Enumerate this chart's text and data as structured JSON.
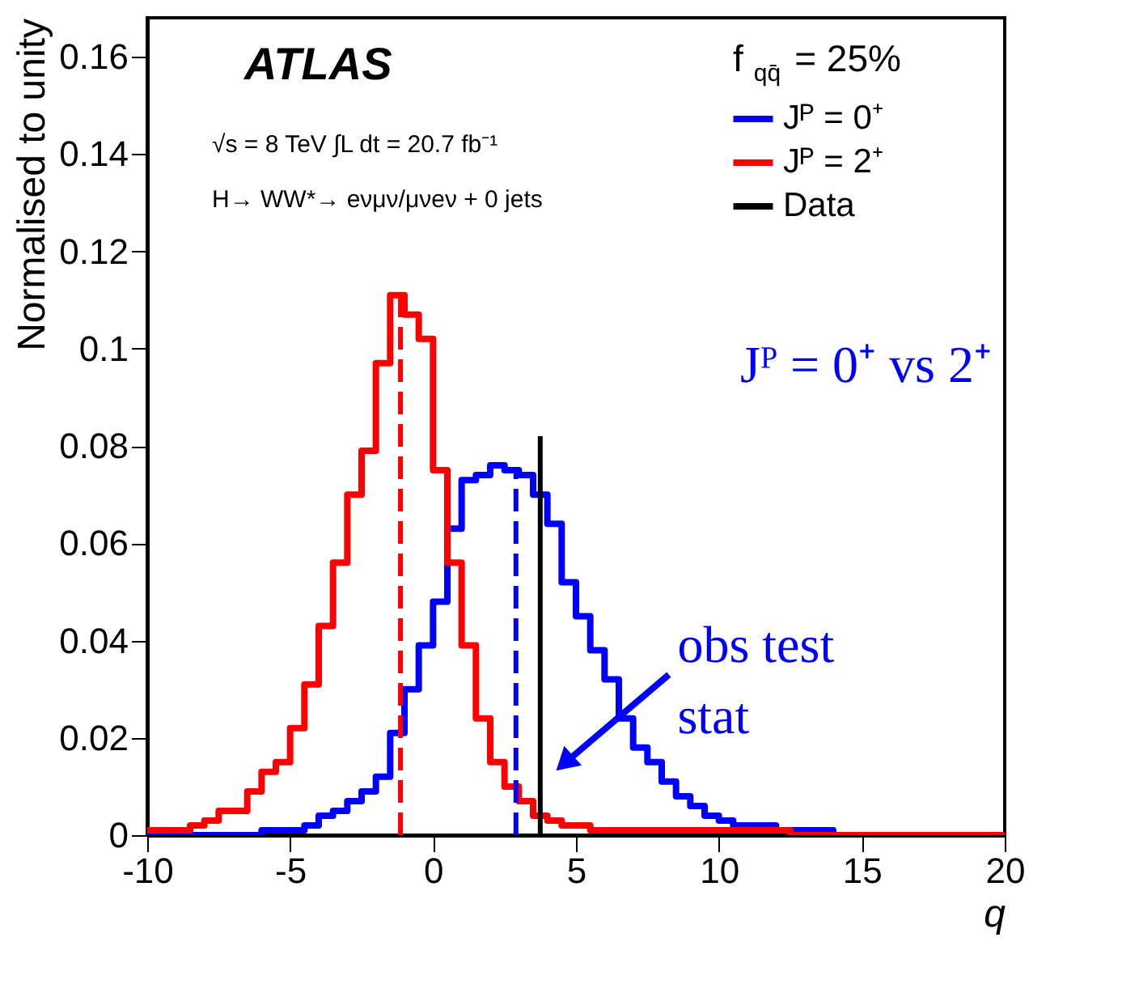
{
  "chart_data": {
    "type": "histogram",
    "xlabel": "q",
    "ylabel": "Normalised to unity",
    "legend_title": "f$_{qq̄}$ = 25%",
    "bins": [
      -10,
      -9.5,
      -9,
      -8.5,
      -8,
      -7.5,
      -7,
      -6.5,
      -6,
      -5.5,
      -5,
      -4.5,
      -4,
      -3.5,
      -3,
      -2.5,
      -2,
      -1.5,
      -1,
      -0.5,
      0,
      0.5,
      1,
      1.5,
      2,
      2.5,
      3,
      3.5,
      4,
      4.5,
      5,
      5.5,
      6,
      6.5,
      7,
      7.5,
      8,
      8.5,
      9,
      9.5,
      10,
      10.5,
      11,
      11.5,
      12,
      12.5,
      13,
      13.5,
      14,
      14.5,
      15,
      15.5,
      16,
      16.5,
      17,
      17.5,
      18,
      18.5,
      19,
      19.5,
      20
    ],
    "series": [
      {
        "name": "Jᴾ = 0⁺",
        "color": "#0000ff",
        "values": [
          0,
          0,
          0,
          0,
          0,
          0,
          0,
          0,
          0.001,
          0.001,
          0.001,
          0.002,
          0.004,
          0.005,
          0.007,
          0.009,
          0.012,
          0.021,
          0.03,
          0.039,
          0.048,
          0.063,
          0.073,
          0.074,
          0.076,
          0.075,
          0.074,
          0.07,
          0.064,
          0.052,
          0.045,
          0.038,
          0.032,
          0.024,
          0.018,
          0.015,
          0.011,
          0.008,
          0.006,
          0.004,
          0.003,
          0.002,
          0.002,
          0.002,
          0.001,
          0.001,
          0.001,
          0.001,
          0,
          0,
          0,
          0,
          0,
          0,
          0,
          0,
          0,
          0,
          0,
          0
        ]
      },
      {
        "name": "Jᴾ = 2⁺",
        "color": "#ff0000",
        "values": [
          0.001,
          0.001,
          0.001,
          0.002,
          0.003,
          0.005,
          0.005,
          0.009,
          0.013,
          0.015,
          0.022,
          0.031,
          0.043,
          0.056,
          0.07,
          0.079,
          0.097,
          0.111,
          0.107,
          0.102,
          0.075,
          0.056,
          0.039,
          0.024,
          0.015,
          0.01,
          0.007,
          0.004,
          0.003,
          0.002,
          0.002,
          0.001,
          0.001,
          0.001,
          0.001,
          0.001,
          0.001,
          0.001,
          0.001,
          0.001,
          0.001,
          0.001,
          0.001,
          0.001,
          0.001,
          0,
          0,
          0,
          0,
          0,
          0,
          0,
          0,
          0,
          0,
          0,
          0,
          0,
          0,
          0
        ]
      },
      {
        "type": "line",
        "color": "#0000ff",
        "line_style": "dashed",
        "x": [
          2.9,
          2.9
        ],
        "values": [
          0,
          0.075
        ]
      },
      {
        "type": "line",
        "color": "#ff0000",
        "line_style": "dashed",
        "x": [
          -1.14,
          -1.14
        ],
        "values": [
          0,
          0.111
        ]
      },
      {
        "type": "line",
        "name": "Data",
        "color": "#000000",
        "line_style": "solid",
        "x": [
          3.75,
          3.75
        ],
        "values": [
          0,
          0.082
        ]
      }
    ],
    "xlim": [
      -10,
      20
    ],
    "xticks": [
      -10,
      -5,
      0,
      5,
      10,
      15,
      20
    ],
    "ylim": [
      0,
      0.168
    ],
    "yticks": [
      0,
      0.02,
      0.04,
      0.06,
      0.08,
      0.1,
      0.12,
      0.14,
      0.16
    ],
    "legend": "top right",
    "grid": false,
    "annotations": [
      "ATLAS",
      "√s = 8 TeV  ∫L dt = 20.7 fb⁻¹",
      "H→ WW*→ eνμν/μνeν + 0 jets",
      "Jᴾ = 0⁺ vs 2⁺",
      {
        "text": "obs test stat",
        "x": 3.75,
        "y": 0.013
      }
    ]
  }
}
